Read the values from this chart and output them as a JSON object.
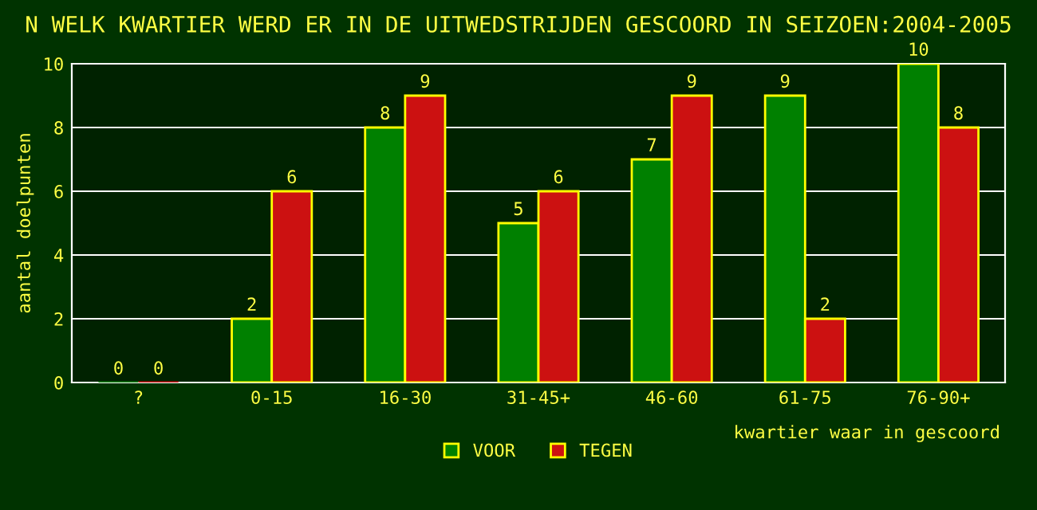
{
  "chart_data": {
    "type": "bar",
    "title": "N WELK KWARTIER WERD ER IN DE UITWEDSTRIJDEN GESCOORD IN SEIZOEN:2004-2005",
    "xlabel": "kwartier waar in gescoord",
    "ylabel": "aantal doelpunten",
    "categories": [
      "?",
      "0-15",
      "16-30",
      "31-45+",
      "46-60",
      "61-75",
      "76-90+"
    ],
    "series": [
      {
        "name": "VOOR",
        "color": "#008000",
        "values": [
          0,
          2,
          8,
          5,
          7,
          9,
          10
        ]
      },
      {
        "name": "TEGEN",
        "color": "#cc1111",
        "values": [
          0,
          6,
          9,
          6,
          9,
          2,
          8
        ]
      }
    ],
    "ylim": [
      0,
      10
    ],
    "yticks": [
      0,
      2,
      4,
      6,
      8,
      10
    ],
    "grid": "y",
    "legend": "bottom",
    "data_labels": true
  }
}
